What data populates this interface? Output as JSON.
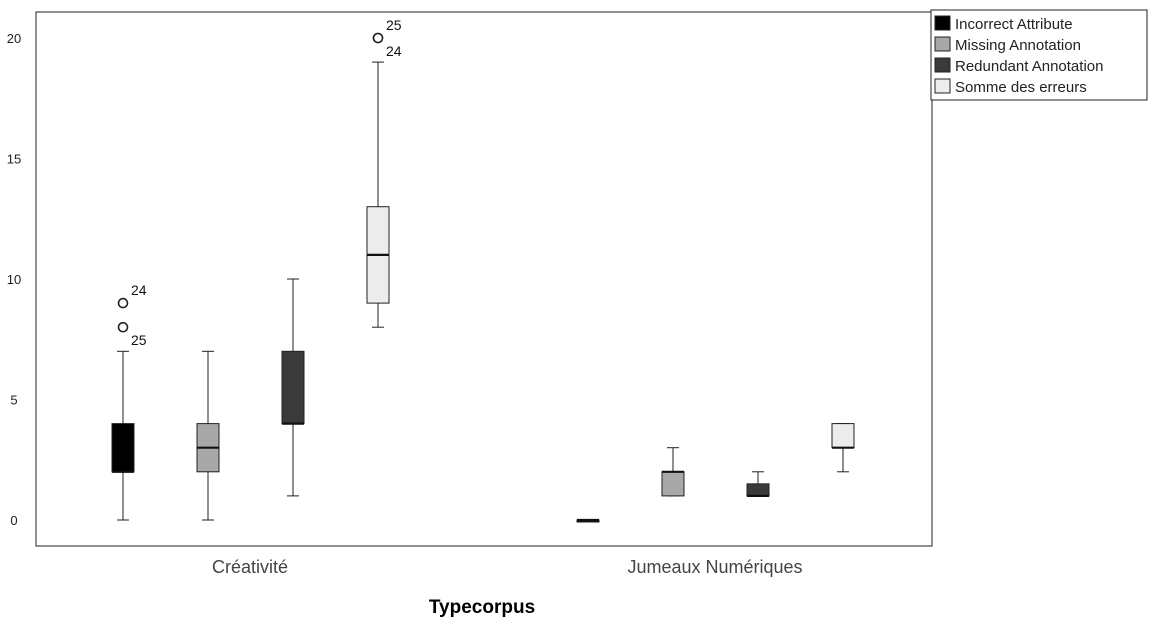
{
  "chart_data": {
    "type": "boxplot",
    "title": "",
    "xlabel": "Typecorpus",
    "ylabel": "",
    "ylim": [
      -1,
      22
    ],
    "yticks": [
      0,
      5,
      10,
      15,
      20
    ],
    "categories": [
      "Créativité",
      "Jumeaux Numériques"
    ],
    "legend_position": "top-right, outside plot",
    "grid": false,
    "series": [
      {
        "name": "Incorrect Attribute",
        "color": "#000000",
        "boxes": [
          {
            "category": "Créativité",
            "min": 0,
            "q1": 2,
            "median": 2,
            "q3": 4,
            "max": 7,
            "outliers": [
              {
                "value": 9,
                "label": "24"
              },
              {
                "value": 8,
                "label": "25"
              }
            ]
          },
          {
            "category": "Jumeaux Numériques",
            "min": 0,
            "q1": 0,
            "median": 0,
            "q3": 0,
            "max": 0,
            "outliers": []
          }
        ]
      },
      {
        "name": "Missing Annotation",
        "color": "#a8a8a8",
        "boxes": [
          {
            "category": "Créativité",
            "min": 0,
            "q1": 2,
            "median": 3,
            "q3": 4,
            "max": 7,
            "outliers": []
          },
          {
            "category": "Jumeaux Numériques",
            "min": 1,
            "q1": 1,
            "median": 2,
            "q3": 2,
            "max": 3,
            "outliers": []
          }
        ]
      },
      {
        "name": "Redundant Annotation",
        "color": "#3a3a3a",
        "boxes": [
          {
            "category": "Créativité",
            "min": 1,
            "q1": 4,
            "median": 4,
            "q3": 7,
            "max": 10,
            "outliers": []
          },
          {
            "category": "Jumeaux Numériques",
            "min": 1,
            "q1": 1,
            "median": 1,
            "q3": 1.5,
            "max": 2,
            "outliers": []
          }
        ]
      },
      {
        "name": "Somme des erreurs",
        "color": "#ececec",
        "boxes": [
          {
            "category": "Créativité",
            "min": 8,
            "q1": 9,
            "median": 11,
            "q3": 13,
            "max": 19,
            "outliers": [
              {
                "value": 20,
                "label": "25"
              },
              {
                "value": 20,
                "label": "24"
              }
            ]
          },
          {
            "category": "Jumeaux Numériques",
            "min": 2,
            "q1": 3,
            "median": 3,
            "q3": 4,
            "max": 4,
            "outliers": []
          }
        ]
      }
    ]
  }
}
